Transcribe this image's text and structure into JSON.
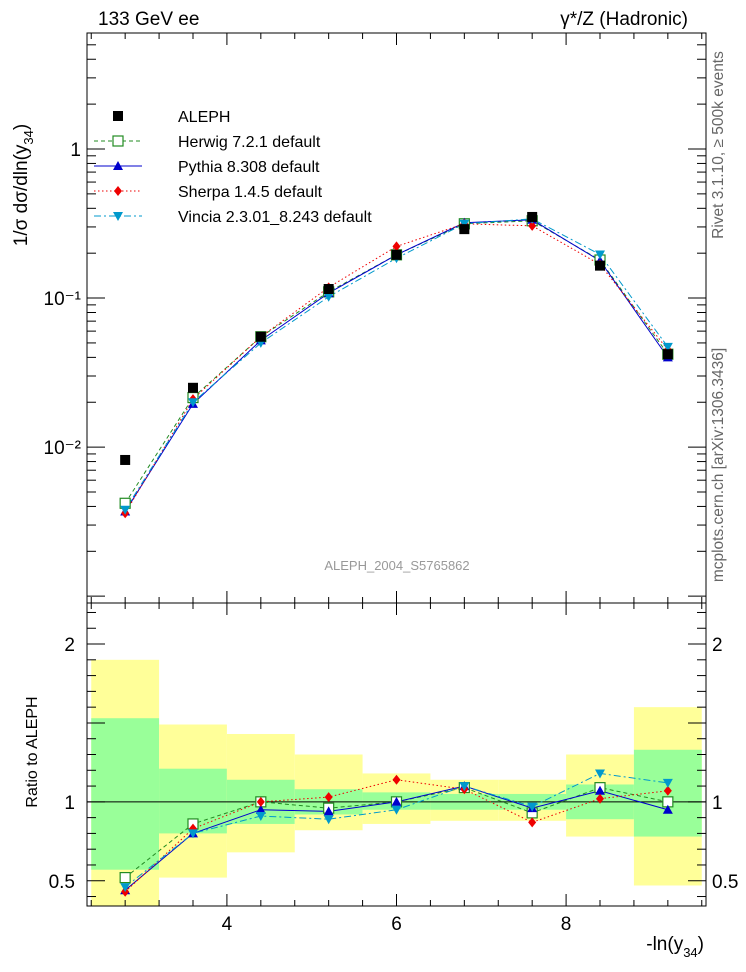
{
  "header": {
    "left": "133 GeV ee",
    "right": "γ*/Z (Hadronic)"
  },
  "side_labels": {
    "rivet": "Rivet 3.1.10, ≥ 500k events",
    "source": "mcplots.cern.ch [arXiv:1306.3436]"
  },
  "watermark": "ALEPH_2004_S5765862",
  "colors": {
    "data": "#000000",
    "herwig": "#228B22",
    "pythia": "#0000CC",
    "sherpa": "#EE0000",
    "vincia": "#0099CC",
    "band_inner": "#99FF99",
    "band_outer": "#FFFF99"
  },
  "chart_data": [
    {
      "type": "scatter",
      "ylabel": "1/σ dσ/dln(y34)",
      "yscale": "log",
      "ylim": [
        0.0009,
        6.0
      ],
      "xlim": [
        2.35,
        9.65
      ],
      "y_tick_labels": [
        "10⁻²",
        "10⁻¹",
        "1"
      ],
      "legend_position": "top-left",
      "x": [
        2.8,
        3.6,
        4.4,
        5.2,
        6.0,
        6.8,
        7.6,
        8.4,
        9.2
      ],
      "series": [
        {
          "name": "ALEPH",
          "key": "data",
          "style": "markers",
          "values": [
            0.0082,
            0.025,
            0.055,
            0.115,
            0.195,
            0.29,
            0.35,
            0.165,
            0.042
          ]
        },
        {
          "name": "Herwig 7.2.1 default",
          "key": "herwig",
          "style": "dashed",
          "values": [
            0.0042,
            0.0215,
            0.055,
            0.11,
            0.195,
            0.315,
            0.33,
            0.18,
            0.042
          ]
        },
        {
          "name": "Pythia 8.308 default",
          "key": "pythia",
          "style": "solid",
          "values": [
            0.0037,
            0.0195,
            0.052,
            0.108,
            0.195,
            0.32,
            0.335,
            0.178,
            0.04
          ]
        },
        {
          "name": "Sherpa 1.4.5 default",
          "key": "sherpa",
          "style": "dotted",
          "values": [
            0.0036,
            0.021,
            0.055,
            0.118,
            0.222,
            0.315,
            0.305,
            0.168,
            0.045
          ]
        },
        {
          "name": "Vincia 2.3.01_8.243 default",
          "key": "vincia",
          "style": "dashdot",
          "values": [
            0.0038,
            0.02,
            0.05,
            0.102,
            0.185,
            0.315,
            0.34,
            0.196,
            0.047
          ]
        }
      ]
    },
    {
      "type": "scatter",
      "xlabel": "-ln(y34)",
      "ylabel": "Ratio to ALEPH",
      "ylim": [
        0.34,
        2.26
      ],
      "xlim": [
        2.35,
        9.65
      ],
      "x_ticks": [
        4,
        6,
        8
      ],
      "y_ticks": [
        0.5,
        1,
        2
      ],
      "bins": [
        {
          "lo": 2.4,
          "hi": 3.2,
          "inner": [
            0.57,
            1.53
          ],
          "outer": [
            0.34,
            1.9
          ]
        },
        {
          "lo": 3.2,
          "hi": 4.0,
          "inner": [
            0.8,
            1.21
          ],
          "outer": [
            0.52,
            1.49
          ]
        },
        {
          "lo": 4.0,
          "hi": 4.8,
          "inner": [
            0.86,
            1.14
          ],
          "outer": [
            0.68,
            1.43
          ]
        },
        {
          "lo": 4.8,
          "hi": 5.6,
          "inner": [
            0.92,
            1.08
          ],
          "outer": [
            0.82,
            1.3
          ]
        },
        {
          "lo": 5.6,
          "hi": 6.4,
          "inner": [
            0.95,
            1.06
          ],
          "outer": [
            0.86,
            1.18
          ]
        },
        {
          "lo": 6.4,
          "hi": 7.2,
          "inner": [
            0.95,
            1.05
          ],
          "outer": [
            0.88,
            1.14
          ]
        },
        {
          "lo": 7.2,
          "hi": 8.0,
          "inner": [
            0.95,
            1.05
          ],
          "outer": [
            0.88,
            1.14
          ]
        },
        {
          "lo": 8.0,
          "hi": 8.8,
          "inner": [
            0.89,
            1.11
          ],
          "outer": [
            0.78,
            1.3
          ]
        },
        {
          "lo": 8.8,
          "hi": 9.6,
          "inner": [
            0.78,
            1.33
          ],
          "outer": [
            0.47,
            1.6
          ]
        }
      ],
      "x": [
        2.8,
        3.6,
        4.4,
        5.2,
        6.0,
        6.8,
        7.6,
        8.4,
        9.2
      ],
      "series": [
        {
          "key": "herwig",
          "style": "dashed",
          "values": [
            0.52,
            0.86,
            1.0,
            0.96,
            1.0,
            1.09,
            0.93,
            1.09,
            1.0
          ]
        },
        {
          "key": "pythia",
          "style": "solid",
          "values": [
            0.44,
            0.8,
            0.95,
            0.94,
            1.0,
            1.1,
            0.96,
            1.07,
            0.95
          ]
        },
        {
          "key": "sherpa",
          "style": "dotted",
          "values": [
            0.43,
            0.83,
            1.0,
            1.03,
            1.14,
            1.08,
            0.87,
            1.02,
            1.07
          ]
        },
        {
          "key": "vincia",
          "style": "dashdot",
          "values": [
            0.46,
            0.8,
            0.91,
            0.89,
            0.95,
            1.1,
            0.97,
            1.18,
            1.12
          ]
        }
      ]
    }
  ]
}
